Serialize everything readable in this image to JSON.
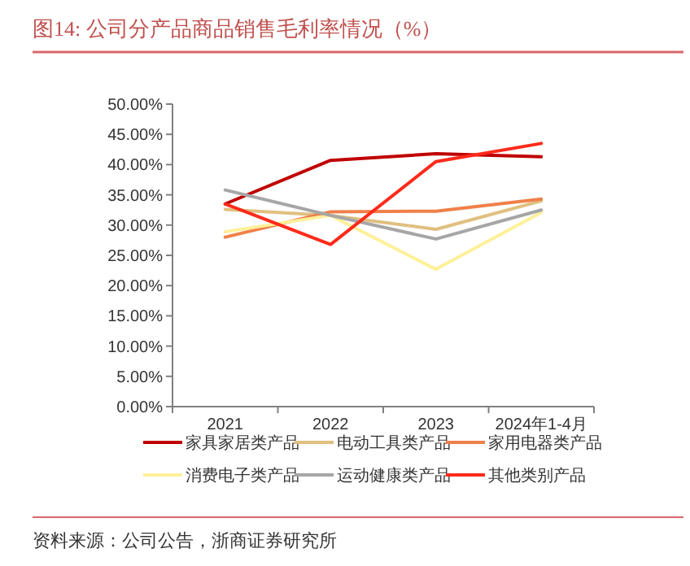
{
  "chart_data": {
    "type": "line",
    "title": "图14:   公司分产品商品销售毛利率情况（%）",
    "annotations": [
      "资料来源：公司公告，浙商证券研究所"
    ],
    "categories": [
      "2021",
      "2022",
      "2023",
      "2024年1-4月"
    ],
    "series": [
      {
        "name": "家具家居类产品",
        "color": "#c00000",
        "values": [
          33.5,
          40.7,
          41.8,
          41.3
        ]
      },
      {
        "name": "电动工具类产品",
        "color": "#e0c080",
        "values": [
          32.6,
          31.6,
          29.3,
          34.0
        ]
      },
      {
        "name": "家用电器类产品",
        "color": "#f0804a",
        "values": [
          28.0,
          32.2,
          32.3,
          34.3
        ]
      },
      {
        "name": "消费电子类产品",
        "color": "#fff09a",
        "values": [
          28.9,
          31.6,
          22.7,
          32.1
        ]
      },
      {
        "name": "运动健康类产品",
        "color": "#a6a6a6",
        "values": [
          35.8,
          31.6,
          27.7,
          32.5
        ]
      },
      {
        "name": "其他类别产品",
        "color": "#ff2a1a",
        "values": [
          33.5,
          26.8,
          40.5,
          43.5
        ]
      }
    ],
    "ylim": [
      0,
      50
    ],
    "yticks": [
      {
        "value": 0,
        "label": "0.00%"
      },
      {
        "value": 5,
        "label": "5.00%"
      },
      {
        "value": 10,
        "label": "10.00%"
      },
      {
        "value": 15,
        "label": "15.00%"
      },
      {
        "value": 20,
        "label": "20.00%"
      },
      {
        "value": 25,
        "label": "25.00%"
      },
      {
        "value": 30,
        "label": "30.00%"
      },
      {
        "value": 35,
        "label": "35.00%"
      },
      {
        "value": 40,
        "label": "40.00%"
      },
      {
        "value": 45,
        "label": "45.00%"
      },
      {
        "value": 50,
        "label": "50.00%"
      }
    ],
    "grid": false,
    "legend": "bottom",
    "marker": "none",
    "line_style": "solid"
  }
}
